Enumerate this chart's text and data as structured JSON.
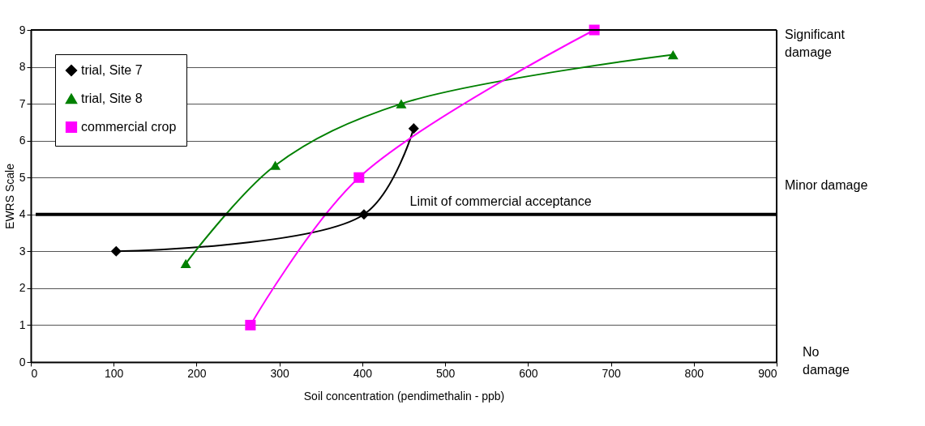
{
  "chart_data": {
    "type": "line",
    "xlabel": "Soil concentration (pendimethalin - ppb)",
    "ylabel": "EWRS Scale",
    "xlim": [
      0,
      900
    ],
    "xticks": [
      0,
      100,
      200,
      300,
      400,
      500,
      600,
      700,
      800,
      900
    ],
    "ylim": [
      0,
      9
    ],
    "yticks": [
      0,
      1,
      2,
      3,
      4,
      5,
      6,
      7,
      8,
      9
    ],
    "grid": "y",
    "legend": "top left",
    "line_style": "solid",
    "series": [
      {
        "name": "trial, Site 7",
        "color": "#000000",
        "marker": "diamond",
        "x": [
          103,
          402,
          462
        ],
        "values": [
          3,
          4,
          6.33
        ]
      },
      {
        "name": "trial, Site 8",
        "color": "#008000",
        "marker": "triangle",
        "x": [
          187,
          295,
          447,
          775
        ],
        "values": [
          2.67,
          5.33,
          7,
          8.33
        ]
      },
      {
        "name": "commercial crop",
        "color": "#ff00ff",
        "marker": "square",
        "x": [
          265,
          396,
          680
        ],
        "values": [
          1,
          5,
          9
        ]
      }
    ],
    "ref_lines": [
      {
        "axis": "y",
        "value": 4,
        "label": "Limit of commercial acceptance",
        "color": "#000000"
      }
    ],
    "annotations": [
      "Significant damage",
      "Minor damage",
      "No damage"
    ]
  }
}
